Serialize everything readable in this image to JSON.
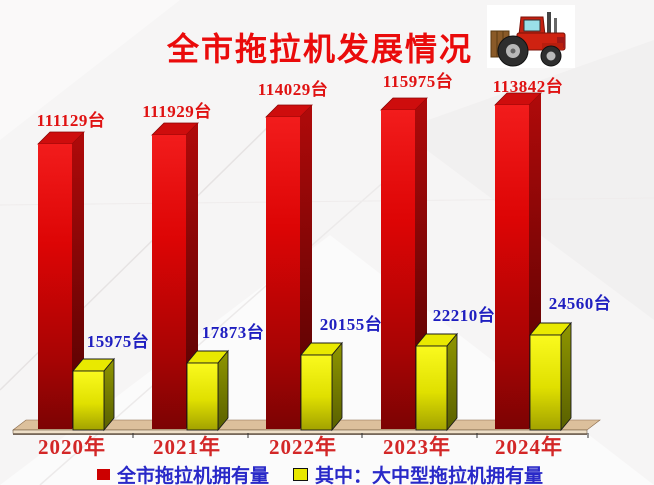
{
  "slide": {
    "background_color": "#f6f5f5",
    "title_color": "#ea0b0b",
    "floor_color": "#dcc09c",
    "tractor_icon": "red-tractor-clipart"
  },
  "chart_data": {
    "type": "bar",
    "style": "3d-column",
    "title": "全市拖拉机发展情况",
    "unit": "台",
    "categories": [
      "2020年",
      "2021年",
      "2022年",
      "2023年",
      "2024年"
    ],
    "series": [
      {
        "name": "全市拖拉机拥有量",
        "color": "#cc0000",
        "label_color": "#e01212",
        "values": [
          111129,
          111929,
          114029,
          115975,
          113842
        ],
        "labels": [
          "111129台",
          "111929台",
          "114029台",
          "115975台",
          "113842台"
        ]
      },
      {
        "name": "其中：大中型拖拉机拥有量",
        "color": "#e8e800",
        "label_color": "#1f1fc0",
        "values": [
          15975,
          17873,
          20155,
          22210,
          24560
        ],
        "labels": [
          "15975台",
          "17873台",
          "20155台",
          "22210台",
          "24560台"
        ]
      }
    ],
    "xlabel": "",
    "ylabel": "",
    "grid": false,
    "legend_position": "bottom",
    "category_label_color": "#d32727"
  }
}
